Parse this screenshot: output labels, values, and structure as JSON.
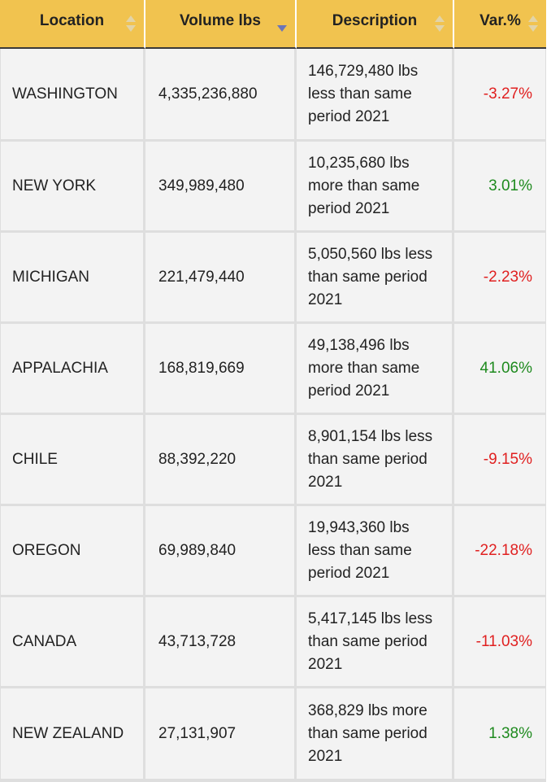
{
  "table": {
    "headers": {
      "location": "Location",
      "volume": "Volume lbs",
      "description": "Description",
      "variance": "Var.%"
    },
    "colors": {
      "header_bg": "#f1c34f",
      "negative": "#e02020",
      "positive": "#1e8a1e",
      "sort_active": "#6b75b8"
    },
    "rows": [
      {
        "location": "WASHINGTON",
        "volume": "4,335,236,880",
        "description": "146,729,480 lbs less than same period 2021",
        "variance": "-3.27%"
      },
      {
        "location": "NEW YORK",
        "volume": "349,989,480",
        "description": "10,235,680 lbs more than same period 2021",
        "variance": "3.01%"
      },
      {
        "location": "MICHIGAN",
        "volume": "221,479,440",
        "description": "5,050,560 lbs less than same period 2021",
        "variance": "-2.23%"
      },
      {
        "location": "APPALACHIA",
        "volume": "168,819,669",
        "description": "49,138,496 lbs more than same period 2021",
        "variance": "41.06%"
      },
      {
        "location": "CHILE",
        "volume": "88,392,220",
        "description": "8,901,154 lbs less than same period 2021",
        "variance": "-9.15%"
      },
      {
        "location": "OREGON",
        "volume": "69,989,840",
        "description": "19,943,360 lbs less than same period 2021",
        "variance": "-22.18%"
      },
      {
        "location": "CANADA",
        "volume": "43,713,728",
        "description": "5,417,145 lbs less than same period 2021",
        "variance": "-11.03%"
      },
      {
        "location": "NEW ZEALAND",
        "volume": "27,131,907",
        "description": "368,829 lbs more than same period 2021",
        "variance": "1.38%"
      }
    ]
  }
}
